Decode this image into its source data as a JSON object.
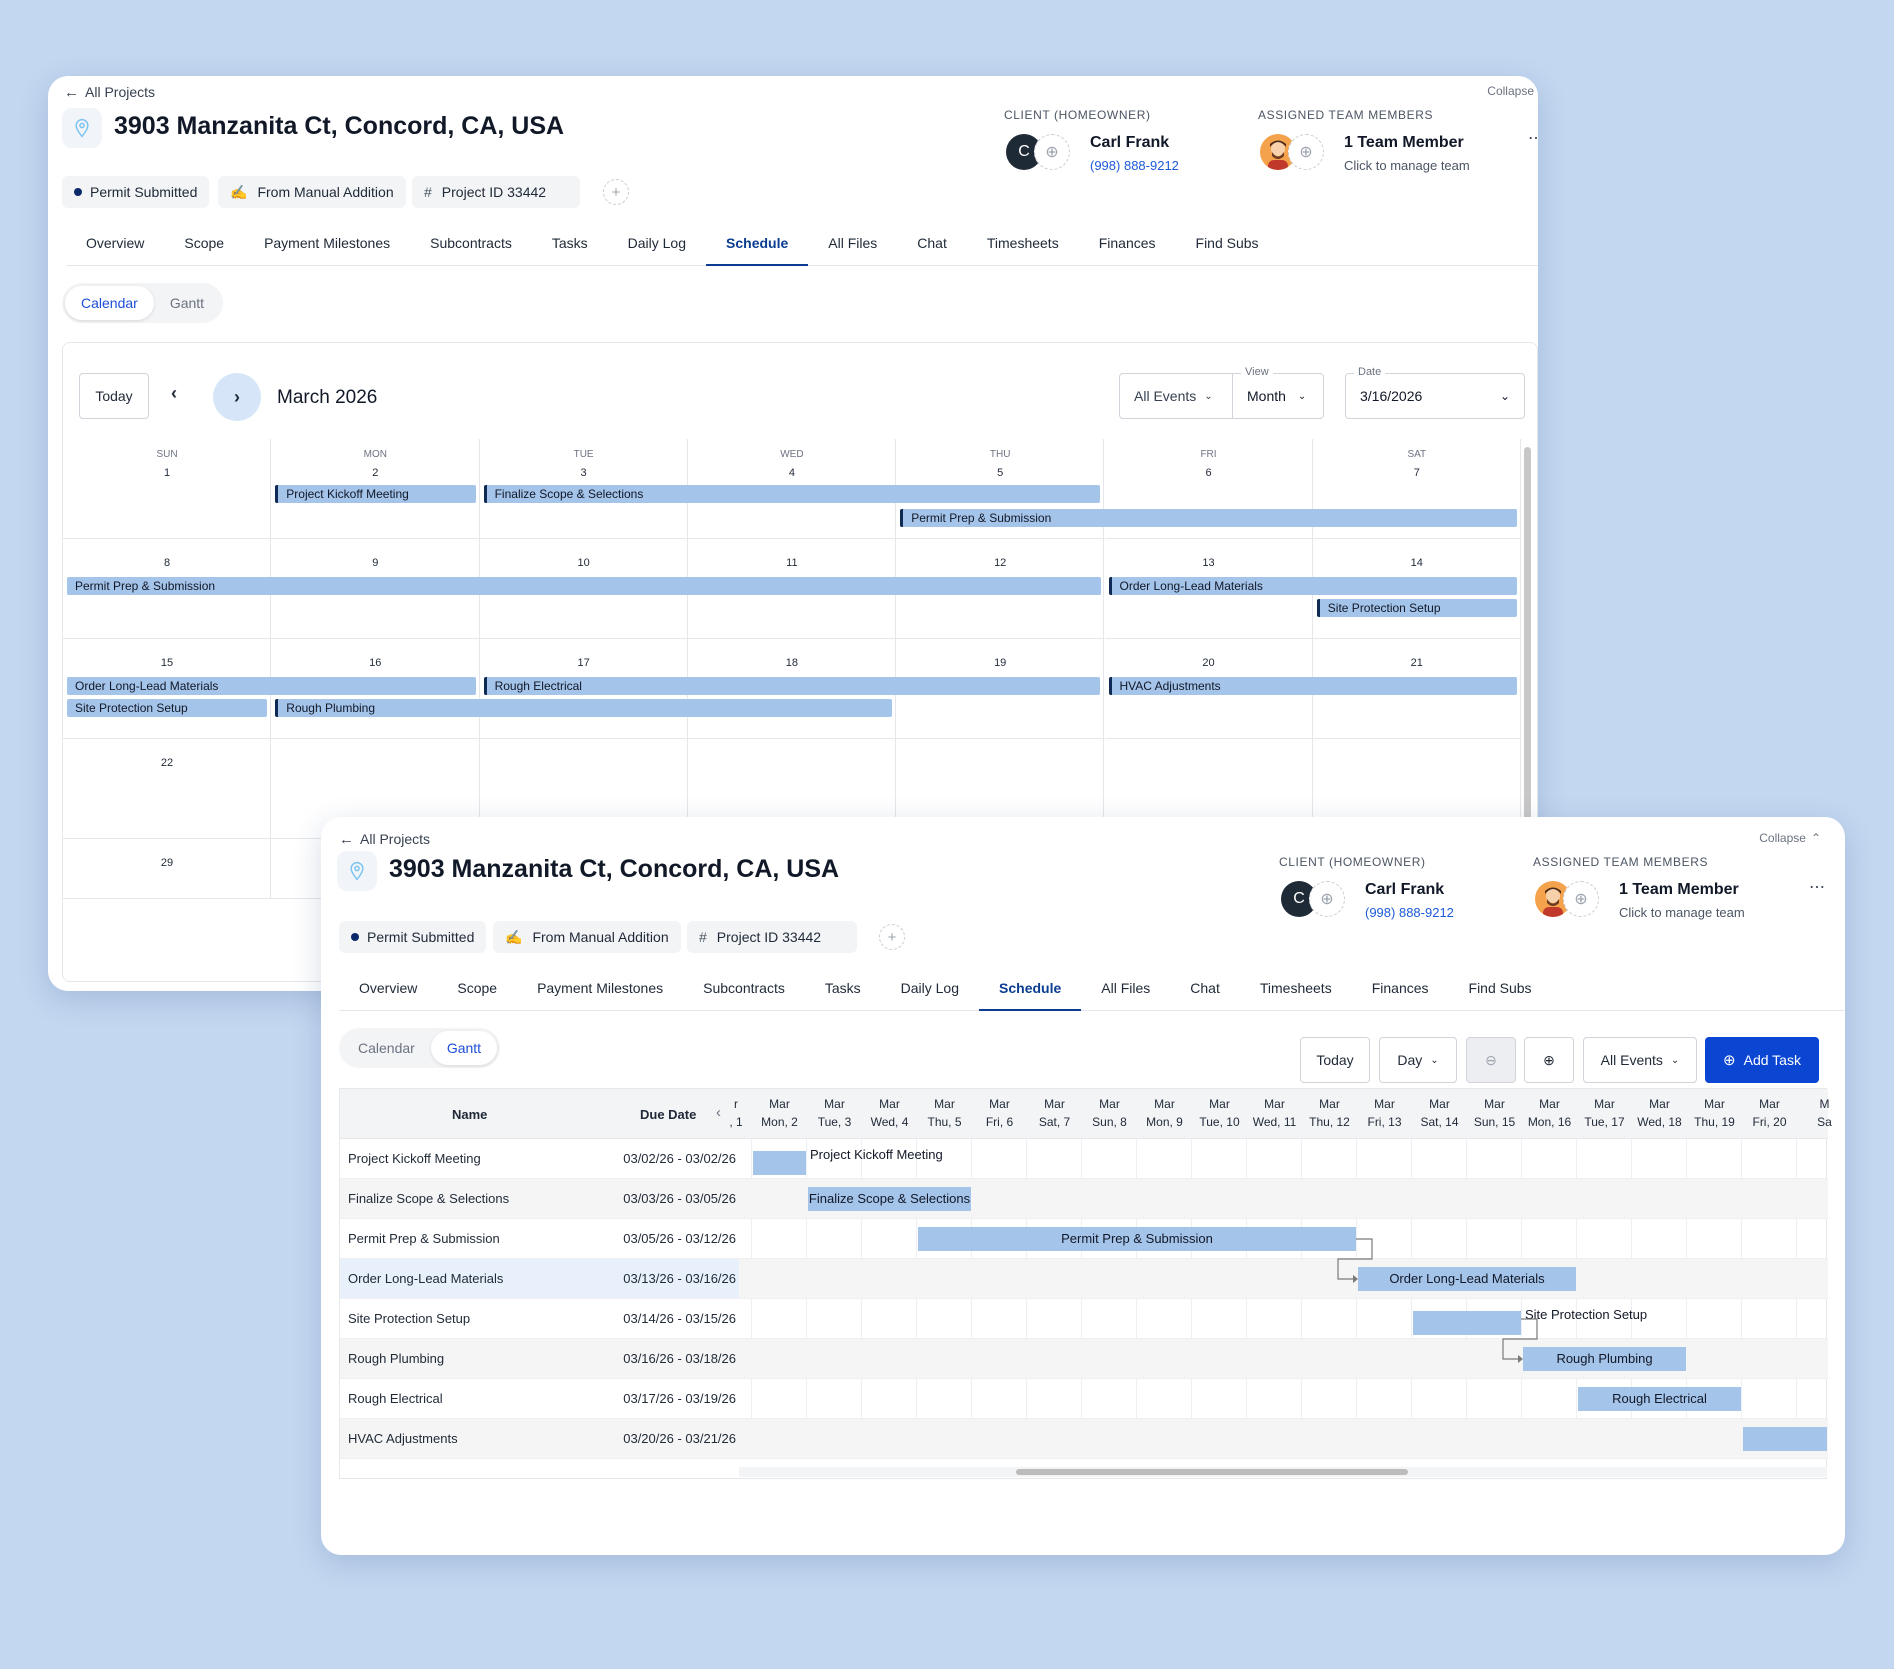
{
  "project": {
    "back_label": "All Projects",
    "collapse_label": "Collapse",
    "address": "3903 Manzanita Ct, Concord, CA, USA",
    "status": "Permit Submitted",
    "source": "From Manual Addition",
    "project_id": "Project ID 33442",
    "client_label": "CLIENT (HOMEOWNER)",
    "client_initial": "C",
    "client_name": "Carl Frank",
    "client_phone": "(998) 888-9212",
    "team_label": "ASSIGNED TEAM MEMBERS",
    "team_count": "1 Team Member",
    "team_hint": "Click to manage team"
  },
  "tabs": [
    "Overview",
    "Scope",
    "Payment Milestones",
    "Subcontracts",
    "Tasks",
    "Daily Log",
    "Schedule",
    "All Files",
    "Chat",
    "Timesheets",
    "Finances",
    "Find Subs"
  ],
  "active_tab": "Schedule",
  "view_toggle": {
    "calendar": "Calendar",
    "gantt": "Gantt"
  },
  "calendar": {
    "today_label": "Today",
    "month_label": "March 2026",
    "events_filter": "All Events",
    "view_label": "View",
    "view_value": "Month",
    "date_label": "Date",
    "date_value": "3/16/2026",
    "weekdays": [
      "SUN",
      "MON",
      "TUE",
      "WED",
      "THU",
      "FRI",
      "SAT"
    ],
    "weeks": [
      [
        "1",
        "2",
        "3",
        "4",
        "5",
        "6",
        "7"
      ],
      [
        "8",
        "9",
        "10",
        "11",
        "12",
        "13",
        "14"
      ],
      [
        "15",
        "16",
        "17",
        "18",
        "19",
        "20",
        "21"
      ],
      [
        "22",
        "",
        "",
        "",
        "",
        "",
        ""
      ],
      [
        "29",
        "",
        "",
        "",
        "",
        "",
        ""
      ]
    ],
    "events": [
      {
        "label": "Project Kickoff Meeting",
        "week": 0,
        "start": 1,
        "end": 1,
        "lane": 0
      },
      {
        "label": "Finalize Scope & Selections",
        "week": 0,
        "start": 2,
        "end": 4,
        "lane": 0
      },
      {
        "label": "Permit Prep & Submission",
        "week": 0,
        "start": 4,
        "end": 6,
        "lane": 1
      },
      {
        "label": "Permit Prep & Submission",
        "week": 1,
        "start": 0,
        "end": 4,
        "lane": 0
      },
      {
        "label": "Order Long-Lead Materials",
        "week": 1,
        "start": 5,
        "end": 6,
        "lane": 0
      },
      {
        "label": "Site Protection Setup",
        "week": 1,
        "start": 6,
        "end": 6,
        "lane": 1
      },
      {
        "label": "Order Long-Lead Materials",
        "week": 2,
        "start": 0,
        "end": 1,
        "lane": 0
      },
      {
        "label": "Site Protection Setup",
        "week": 2,
        "start": 0,
        "end": 0,
        "lane": 1
      },
      {
        "label": "Rough Electrical",
        "week": 2,
        "start": 2,
        "end": 4,
        "lane": 0
      },
      {
        "label": "Rough Plumbing",
        "week": 2,
        "start": 1,
        "end": 3,
        "lane": 1
      },
      {
        "label": "HVAC Adjustments",
        "week": 2,
        "start": 5,
        "end": 6,
        "lane": 0
      }
    ]
  },
  "gantt": {
    "today_label": "Today",
    "scale_value": "Day",
    "events_filter": "All Events",
    "add_task_label": "Add Task",
    "col_name": "Name",
    "col_due": "Due Date",
    "partial_first": [
      "r",
      ", 1"
    ],
    "days": [
      [
        "Mar",
        "Mon, 2"
      ],
      [
        "Mar",
        "Tue, 3"
      ],
      [
        "Mar",
        "Wed, 4"
      ],
      [
        "Mar",
        "Thu, 5"
      ],
      [
        "Mar",
        "Fri, 6"
      ],
      [
        "Mar",
        "Sat, 7"
      ],
      [
        "Mar",
        "Sun, 8"
      ],
      [
        "Mar",
        "Mon, 9"
      ],
      [
        "Mar",
        "Tue, 10"
      ],
      [
        "Mar",
        "Wed, 11"
      ],
      [
        "Mar",
        "Thu, 12"
      ],
      [
        "Mar",
        "Fri, 13"
      ],
      [
        "Mar",
        "Sat, 14"
      ],
      [
        "Mar",
        "Sun, 15"
      ],
      [
        "Mar",
        "Mon, 16"
      ],
      [
        "Mar",
        "Tue, 17"
      ],
      [
        "Mar",
        "Wed, 18"
      ],
      [
        "Mar",
        "Thu, 19"
      ],
      [
        "Mar",
        "Fri, 20"
      ],
      [
        "M",
        "Sa"
      ]
    ],
    "tasks": [
      {
        "name": "Project Kickoff Meeting",
        "dates": "03/02/26 - 03/02/26",
        "start": 2,
        "end": 2,
        "label_outside": true
      },
      {
        "name": "Finalize Scope & Selections",
        "dates": "03/03/26 - 03/05/26",
        "start": 3,
        "end": 5,
        "label_outside": false
      },
      {
        "name": "Permit Prep & Submission",
        "dates": "03/05/26 - 03/12/26",
        "start": 5,
        "end": 12,
        "label_outside": false
      },
      {
        "name": "Order Long-Lead Materials",
        "dates": "03/13/26 - 03/16/26",
        "start": 13,
        "end": 16,
        "label_outside": false
      },
      {
        "name": "Site Protection Setup",
        "dates": "03/14/26 - 03/15/26",
        "start": 14,
        "end": 15,
        "label_outside": true
      },
      {
        "name": "Rough Plumbing",
        "dates": "03/16/26 - 03/18/26",
        "start": 16,
        "end": 18,
        "label_outside": false
      },
      {
        "name": "Rough Electrical",
        "dates": "03/17/26 - 03/19/26",
        "start": 17,
        "end": 19,
        "label_outside": false
      },
      {
        "name": "HVAC Adjustments",
        "dates": "03/20/26 - 03/21/26",
        "start": 20,
        "end": 21,
        "label_outside": false
      }
    ]
  },
  "colors": {
    "accent": "#0a3d91",
    "primary_button": "#0b46d3",
    "event_bar": "#a5c4ea",
    "page_bg": "#c3d7f0"
  }
}
